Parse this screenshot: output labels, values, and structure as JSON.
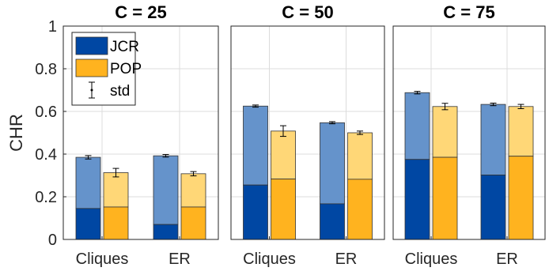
{
  "chart_data": [
    {
      "type": "bar",
      "title": "C = 25",
      "ylabel": "CHR",
      "ylim": [
        0,
        1
      ],
      "yticks": [
        "0",
        "0.2",
        "0.4",
        "0.6",
        "0.8",
        "1"
      ],
      "categories": [
        "Cliques",
        "ER"
      ],
      "series": [
        {
          "name": "JCR",
          "values": [
            0.385,
            0.392
          ],
          "lower": [
            0.145,
            0.07
          ],
          "std": [
            0.008,
            0.006
          ]
        },
        {
          "name": "POP",
          "values": [
            0.313,
            0.308
          ],
          "lower": [
            0.152,
            0.152
          ],
          "std": [
            0.02,
            0.01
          ]
        }
      ]
    },
    {
      "type": "bar",
      "title": "C = 50",
      "ylim": [
        0,
        1
      ],
      "categories": [
        "Cliques",
        "ER"
      ],
      "series": [
        {
          "name": "JCR",
          "values": [
            0.625,
            0.547
          ],
          "lower": [
            0.255,
            0.167
          ],
          "std": [
            0.005,
            0.005
          ]
        },
        {
          "name": "POP",
          "values": [
            0.508,
            0.5
          ],
          "lower": [
            0.283,
            0.282
          ],
          "std": [
            0.025,
            0.008
          ]
        }
      ]
    },
    {
      "type": "bar",
      "title": "C = 75",
      "ylim": [
        0,
        1
      ],
      "categories": [
        "Cliques",
        "ER"
      ],
      "series": [
        {
          "name": "JCR",
          "values": [
            0.688,
            0.633
          ],
          "lower": [
            0.375,
            0.302
          ],
          "std": [
            0.006,
            0.006
          ]
        },
        {
          "name": "POP",
          "values": [
            0.623,
            0.623
          ],
          "lower": [
            0.385,
            0.39
          ],
          "std": [
            0.015,
            0.01
          ]
        }
      ]
    }
  ],
  "legend": {
    "items": [
      {
        "label": "JCR",
        "color": "#0047a3"
      },
      {
        "label": "POP",
        "color": "#ffb31f"
      },
      {
        "label": "std",
        "kind": "errorbar"
      }
    ],
    "placement": "top-left of first panel"
  },
  "colors": {
    "jcr_dark": "#0047a3",
    "jcr_light": "#6593cb",
    "pop_dark": "#ffb31f",
    "pop_light": "#ffd777",
    "grid": "#dcdcdc",
    "axis": "#262626"
  },
  "grid": true
}
